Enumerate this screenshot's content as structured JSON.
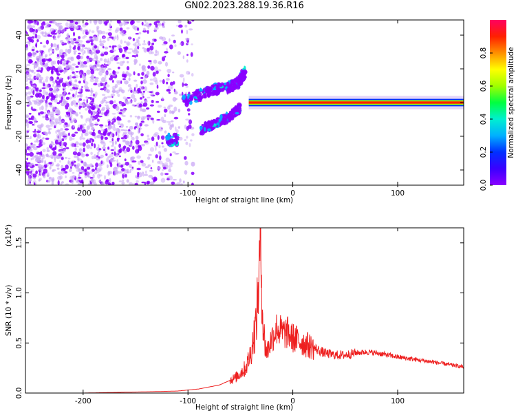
{
  "title": "GN02.2023.288.19.36.R16",
  "colors": {
    "rainbow": [
      "#8a00ff",
      "#3a00ff",
      "#0030ff",
      "#00b0ff",
      "#00f0d0",
      "#00ff40",
      "#a0ff00",
      "#ffff00",
      "#ff9000",
      "#ff2000",
      "#ff0060"
    ],
    "snr_line": "#ee2020"
  },
  "spectrogram": {
    "xlabel": "Height of straight line (km)",
    "ylabel": "Frequency (Hz)",
    "xlim": [
      -255,
      163
    ],
    "ylim": [
      -49,
      49
    ],
    "xticks": [
      -200,
      -100,
      0,
      100
    ],
    "yticks": [
      -40,
      -20,
      0,
      20,
      40
    ],
    "colorbar": {
      "label": "Normalized spectral amplitude",
      "ticks": [
        "0.0",
        "0.2",
        "0.4",
        "0.6",
        "0.8"
      ],
      "range": [
        0,
        1
      ]
    }
  },
  "chart_data": [
    {
      "type": "heatmap",
      "title": "GN02.2023.288.19.36.R16",
      "xlabel": "Height of straight line (km)",
      "ylabel": "Frequency (Hz)",
      "xlim": [
        -255,
        163
      ],
      "ylim": [
        -49,
        49
      ],
      "colorbar_label": "Normalized spectral amplitude",
      "features": [
        {
          "name": "noise field",
          "x_range": [
            -255,
            -100
          ],
          "freq_range": [
            -49,
            49
          ],
          "amplitude": 0.1
        },
        {
          "name": "upper branch",
          "x": [
            -105,
            -90,
            -75,
            -62,
            -52,
            -45
          ],
          "freq": [
            1,
            4,
            8,
            9,
            12,
            18
          ],
          "amplitude": 0.3
        },
        {
          "name": "lower branch",
          "x": [
            -88,
            -75,
            -60,
            -50
          ],
          "freq": [
            -16,
            -13,
            -8,
            -3
          ],
          "amplitude": 0.3
        },
        {
          "name": "lower cluster",
          "x": [
            -120,
            -110
          ],
          "freq": [
            -22,
            -22
          ],
          "amplitude": 0.35
        },
        {
          "name": "zero-frequency band",
          "x_range": [
            -42,
            163
          ],
          "freq": 0,
          "amplitude": 1.0
        }
      ]
    },
    {
      "type": "line",
      "xlabel": "Height of straight line (km)",
      "ylabel": "SNR (10 * v/v)",
      "y_multiplier": "(x10^4)",
      "xlim": [
        -255,
        163
      ],
      "ylim": [
        0,
        1.65
      ],
      "xticks": [
        -200,
        -100,
        0,
        100
      ],
      "yticks": [
        0.0,
        0.5,
        1.0,
        1.5
      ],
      "series": [
        {
          "x": [
            -255,
            -200,
            -150,
            -110,
            -90,
            -70,
            -55,
            -45,
            -40,
            -35,
            -32,
            -31,
            -30,
            -28,
            -25,
            -20,
            -15,
            -10,
            -5,
            0,
            10,
            20,
            30,
            40,
            50,
            60,
            70,
            80,
            90,
            100,
            120,
            140,
            163
          ],
          "values": [
            0.0,
            0.0,
            0.01,
            0.02,
            0.04,
            0.08,
            0.15,
            0.25,
            0.4,
            0.7,
            1.2,
            1.6,
            1.2,
            0.6,
            0.4,
            0.55,
            0.65,
            0.6,
            0.6,
            0.55,
            0.5,
            0.45,
            0.4,
            0.38,
            0.38,
            0.4,
            0.41,
            0.4,
            0.38,
            0.36,
            0.33,
            0.3,
            0.26
          ]
        }
      ]
    }
  ],
  "snr": {
    "xlabel": "Height of straight line (km)",
    "ylabel": "SNR (10 * v/v)",
    "multiplier": "(x10",
    "multiplier_exp": "4",
    "multiplier_close": ")",
    "xticks": [
      -200,
      -100,
      0,
      100
    ],
    "yticks": [
      "0.0",
      "0.5",
      "1.0",
      "1.5"
    ]
  }
}
